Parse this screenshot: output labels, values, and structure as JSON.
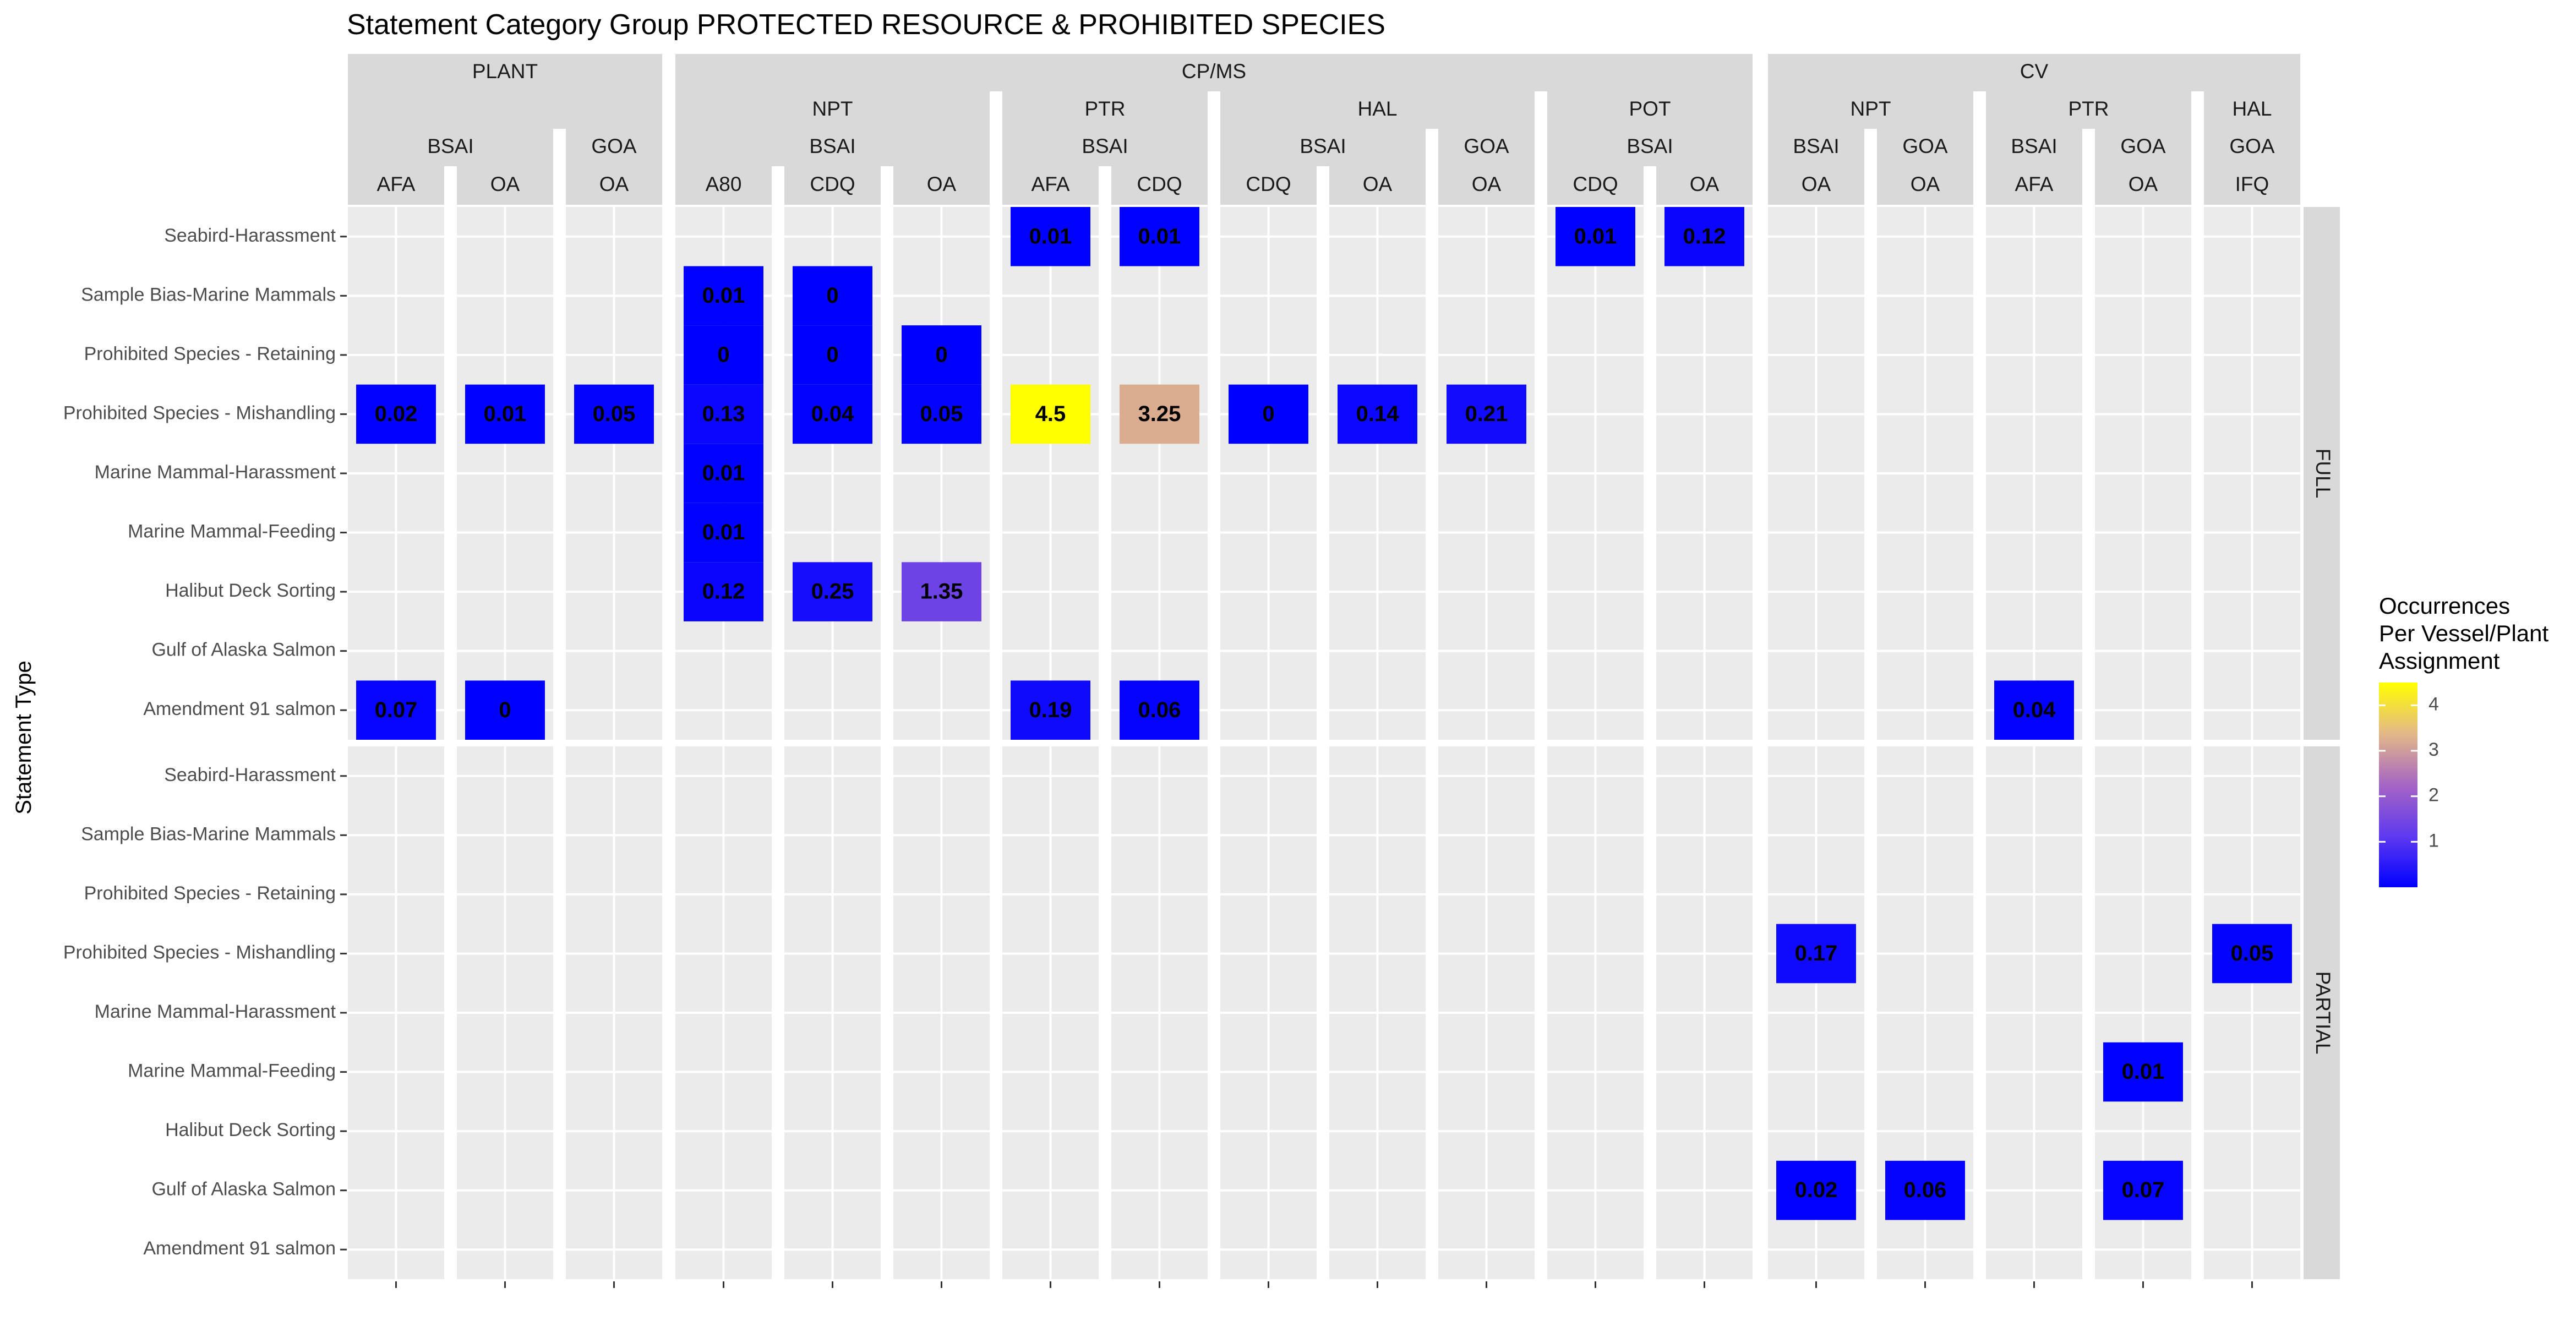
{
  "chart_data": {
    "type": "heatmap",
    "title": "Statement Category Group  PROTECTED RESOURCE & PROHIBITED SPECIES",
    "ylabel": "Statement Type",
    "legend": {
      "title_lines": [
        "Occurrences",
        "Per Vessel/Plant",
        "Assignment"
      ],
      "ticks": [
        1,
        2,
        3,
        4
      ],
      "range": [
        0,
        4.5
      ],
      "colors": [
        "#0000ff",
        "#7a4ae6",
        "#e3b888",
        "#ffff00"
      ],
      "placement": "right"
    },
    "column_groups": [
      {
        "name": "PLANT",
        "panels": [
          {
            "l2": "",
            "l3": "BSAI",
            "l4": "AFA"
          },
          {
            "l2": "",
            "l3": "BSAI",
            "l4": "OA"
          },
          {
            "l2": "",
            "l3": "GOA",
            "l4": "OA"
          }
        ]
      },
      {
        "name": "CP/MS",
        "panels": [
          {
            "l2": "NPT",
            "l3": "BSAI",
            "l4": "A80"
          },
          {
            "l2": "NPT",
            "l3": "BSAI",
            "l4": "CDQ"
          },
          {
            "l2": "NPT",
            "l3": "BSAI",
            "l4": "OA"
          },
          {
            "l2": "PTR",
            "l3": "BSAI",
            "l4": "AFA"
          },
          {
            "l2": "PTR",
            "l3": "BSAI",
            "l4": "CDQ"
          },
          {
            "l2": "HAL",
            "l3": "BSAI",
            "l4": "CDQ"
          },
          {
            "l2": "HAL",
            "l3": "BSAI",
            "l4": "OA"
          },
          {
            "l2": "HAL",
            "l3": "GOA",
            "l4": "OA"
          },
          {
            "l2": "POT",
            "l3": "BSAI",
            "l4": "CDQ"
          },
          {
            "l2": "POT",
            "l3": "BSAI",
            "l4": "OA"
          }
        ]
      },
      {
        "name": "CV",
        "panels": [
          {
            "l2": "NPT",
            "l3": "BSAI",
            "l4": "OA"
          },
          {
            "l2": "NPT",
            "l3": "GOA",
            "l4": "OA"
          },
          {
            "l2": "PTR",
            "l3": "BSAI",
            "l4": "AFA"
          },
          {
            "l2": "PTR",
            "l3": "GOA",
            "l4": "OA"
          },
          {
            "l2": "HAL",
            "l3": "GOA",
            "l4": "IFQ"
          }
        ]
      }
    ],
    "row_facets": [
      "FULL",
      "PARTIAL"
    ],
    "categories": [
      "Seabird-Harassment",
      "Sample Bias-Marine Mammals",
      "Prohibited Species - Retaining",
      "Prohibited Species - Mishandling",
      "Marine Mammal-Harassment",
      "Marine Mammal-Feeding",
      "Halibut Deck Sorting",
      "Gulf of Alaska Salmon",
      "Amendment 91 salmon"
    ],
    "cells": [
      {
        "facet": 0,
        "panel": 6,
        "row": 0,
        "value": 0.01,
        "label": "0.01"
      },
      {
        "facet": 0,
        "panel": 7,
        "row": 0,
        "value": 0.01,
        "label": "0.01"
      },
      {
        "facet": 0,
        "panel": 11,
        "row": 0,
        "value": 0.01,
        "label": "0.01"
      },
      {
        "facet": 0,
        "panel": 12,
        "row": 0,
        "value": 0.12,
        "label": "0.12"
      },
      {
        "facet": 0,
        "panel": 3,
        "row": 1,
        "value": 0.01,
        "label": "0.01"
      },
      {
        "facet": 0,
        "panel": 4,
        "row": 1,
        "value": 0,
        "label": "0"
      },
      {
        "facet": 0,
        "panel": 3,
        "row": 2,
        "value": 0,
        "label": "0"
      },
      {
        "facet": 0,
        "panel": 4,
        "row": 2,
        "value": 0,
        "label": "0"
      },
      {
        "facet": 0,
        "panel": 5,
        "row": 2,
        "value": 0,
        "label": "0"
      },
      {
        "facet": 0,
        "panel": 0,
        "row": 3,
        "value": 0.02,
        "label": "0.02"
      },
      {
        "facet": 0,
        "panel": 1,
        "row": 3,
        "value": 0.01,
        "label": "0.01"
      },
      {
        "facet": 0,
        "panel": 2,
        "row": 3,
        "value": 0.05,
        "label": "0.05"
      },
      {
        "facet": 0,
        "panel": 3,
        "row": 3,
        "value": 0.13,
        "label": "0.13"
      },
      {
        "facet": 0,
        "panel": 4,
        "row": 3,
        "value": 0.04,
        "label": "0.04"
      },
      {
        "facet": 0,
        "panel": 5,
        "row": 3,
        "value": 0.05,
        "label": "0.05"
      },
      {
        "facet": 0,
        "panel": 6,
        "row": 3,
        "value": 4.5,
        "label": "4.5"
      },
      {
        "facet": 0,
        "panel": 7,
        "row": 3,
        "value": 3.25,
        "label": "3.25"
      },
      {
        "facet": 0,
        "panel": 8,
        "row": 3,
        "value": 0,
        "label": "0"
      },
      {
        "facet": 0,
        "panel": 9,
        "row": 3,
        "value": 0.14,
        "label": "0.14"
      },
      {
        "facet": 0,
        "panel": 10,
        "row": 3,
        "value": 0.21,
        "label": "0.21"
      },
      {
        "facet": 0,
        "panel": 3,
        "row": 4,
        "value": 0.01,
        "label": "0.01"
      },
      {
        "facet": 0,
        "panel": 3,
        "row": 5,
        "value": 0.01,
        "label": "0.01"
      },
      {
        "facet": 0,
        "panel": 3,
        "row": 6,
        "value": 0.12,
        "label": "0.12"
      },
      {
        "facet": 0,
        "panel": 4,
        "row": 6,
        "value": 0.25,
        "label": "0.25"
      },
      {
        "facet": 0,
        "panel": 5,
        "row": 6,
        "value": 1.35,
        "label": "1.35"
      },
      {
        "facet": 0,
        "panel": 0,
        "row": 8,
        "value": 0.07,
        "label": "0.07"
      },
      {
        "facet": 0,
        "panel": 1,
        "row": 8,
        "value": 0,
        "label": "0"
      },
      {
        "facet": 0,
        "panel": 6,
        "row": 8,
        "value": 0.19,
        "label": "0.19"
      },
      {
        "facet": 0,
        "panel": 7,
        "row": 8,
        "value": 0.06,
        "label": "0.06"
      },
      {
        "facet": 0,
        "panel": 15,
        "row": 8,
        "value": 0.04,
        "label": "0.04"
      },
      {
        "facet": 1,
        "panel": 13,
        "row": 3,
        "value": 0.17,
        "label": "0.17"
      },
      {
        "facet": 1,
        "panel": 17,
        "row": 3,
        "value": 0.05,
        "label": "0.05"
      },
      {
        "facet": 1,
        "panel": 16,
        "row": 5,
        "value": 0.01,
        "label": "0.01"
      },
      {
        "facet": 1,
        "panel": 13,
        "row": 7,
        "value": 0.02,
        "label": "0.02"
      },
      {
        "facet": 1,
        "panel": 14,
        "row": 7,
        "value": 0.06,
        "label": "0.06"
      },
      {
        "facet": 1,
        "panel": 16,
        "row": 7,
        "value": 0.07,
        "label": "0.07"
      }
    ]
  }
}
